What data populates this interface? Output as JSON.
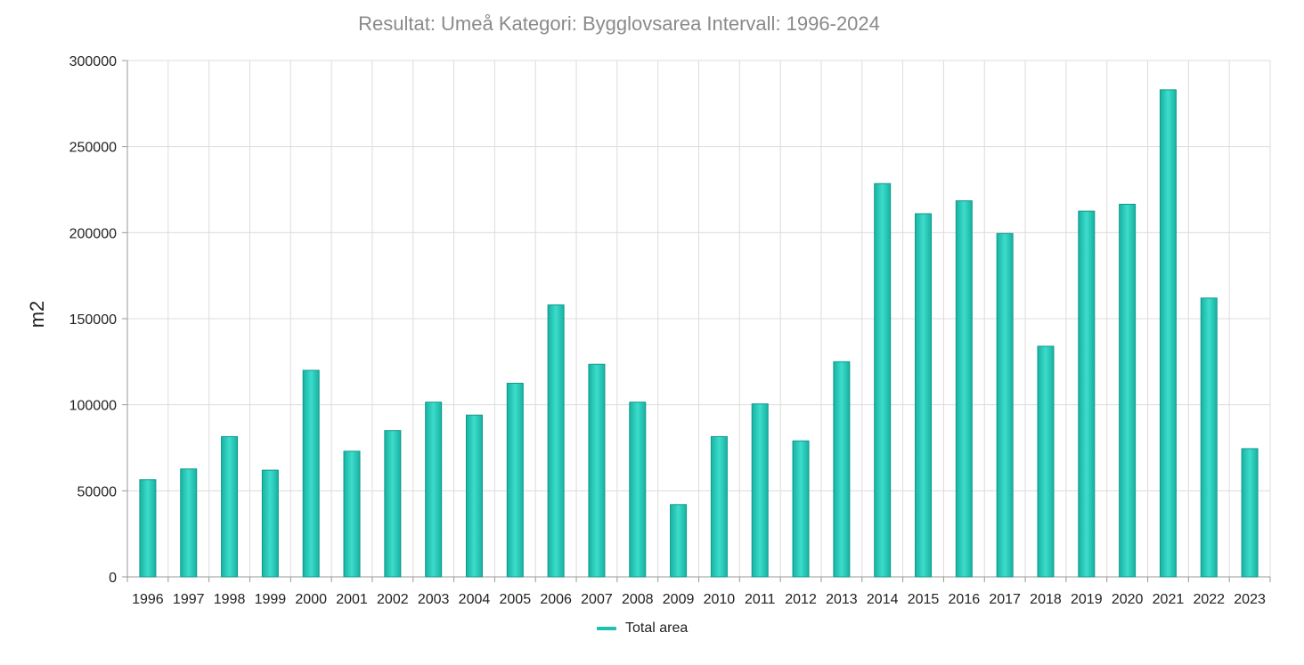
{
  "chart_data": {
    "type": "bar",
    "title": "Resultat: Umeå Kategori: Bygglovsarea Intervall: 1996-2024",
    "xlabel": "",
    "ylabel": "m2",
    "ylim": [
      0,
      300000
    ],
    "yticks": [
      "0",
      "50000",
      "100000",
      "150000",
      "200000",
      "250000",
      "300000"
    ],
    "grid": true,
    "legend_position": "bottom",
    "categories": [
      "1996",
      "1997",
      "1998",
      "1999",
      "2000",
      "2001",
      "2002",
      "2003",
      "2004",
      "2005",
      "2006",
      "2007",
      "2008",
      "2009",
      "2010",
      "2011",
      "2012",
      "2013",
      "2014",
      "2015",
      "2016",
      "2017",
      "2018",
      "2019",
      "2020",
      "2021",
      "2022",
      "2023"
    ],
    "series": [
      {
        "name": "Total area",
        "color": "#1fc2b0",
        "values": [
          56500,
          62700,
          81500,
          62000,
          120000,
          73000,
          85000,
          101500,
          94000,
          112500,
          158000,
          123500,
          101500,
          42000,
          81500,
          100500,
          79000,
          125000,
          228500,
          211000,
          218500,
          199500,
          134000,
          212500,
          216500,
          283000,
          162000,
          74500
        ]
      }
    ]
  }
}
